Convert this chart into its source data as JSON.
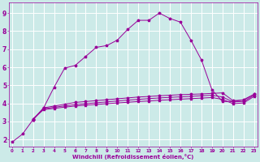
{
  "xlabel": "Windchill (Refroidissement éolien,°C)",
  "bg_color": "#cceae8",
  "grid_color": "#ffffff",
  "line_color": "#990099",
  "marker": "*",
  "x_ticks": [
    0,
    1,
    2,
    3,
    4,
    5,
    6,
    7,
    8,
    9,
    10,
    11,
    12,
    13,
    14,
    15,
    16,
    17,
    18,
    19,
    20,
    21,
    22,
    23
  ],
  "y_ticks": [
    2,
    3,
    4,
    5,
    6,
    7,
    8,
    9
  ],
  "xlim": [
    -0.3,
    23.3
  ],
  "ylim": [
    1.6,
    9.6
  ],
  "curve1_x": [
    0,
    1,
    2,
    3,
    4,
    5,
    6,
    7,
    8,
    9,
    10,
    11,
    12,
    13,
    14,
    15,
    16,
    17,
    18,
    19,
    20,
    21,
    22,
    23
  ],
  "curve1_y": [
    1.85,
    2.3,
    3.1,
    3.75,
    4.9,
    5.95,
    6.1,
    6.6,
    7.1,
    7.2,
    7.5,
    8.1,
    8.6,
    8.6,
    9.0,
    8.7,
    8.5,
    7.5,
    6.4,
    4.75,
    4.1,
    4.1,
    4.2,
    4.5
  ],
  "curve2_x": [
    2,
    3,
    4,
    5,
    6,
    7,
    8,
    9,
    10,
    11,
    12,
    13,
    14,
    15,
    16,
    17,
    18,
    19,
    20,
    21,
    22,
    23
  ],
  "curve2_y": [
    3.1,
    3.75,
    3.85,
    3.95,
    4.05,
    4.1,
    4.15,
    4.2,
    4.25,
    4.3,
    4.35,
    4.38,
    4.42,
    4.45,
    4.48,
    4.5,
    4.52,
    4.55,
    4.58,
    4.15,
    4.18,
    4.5
  ],
  "curve3_x": [
    2,
    3,
    4,
    5,
    6,
    7,
    8,
    9,
    10,
    11,
    12,
    13,
    14,
    15,
    16,
    17,
    18,
    19,
    20,
    21,
    22,
    23
  ],
  "curve3_y": [
    3.1,
    3.7,
    3.78,
    3.86,
    3.93,
    3.98,
    4.03,
    4.08,
    4.13,
    4.18,
    4.22,
    4.26,
    4.3,
    4.33,
    4.36,
    4.39,
    4.42,
    4.45,
    4.35,
    4.08,
    4.1,
    4.44
  ],
  "curve4_x": [
    2,
    3,
    4,
    5,
    6,
    7,
    8,
    9,
    10,
    11,
    12,
    13,
    14,
    15,
    16,
    17,
    18,
    19,
    20,
    21,
    22,
    23
  ],
  "curve4_y": [
    3.15,
    3.65,
    3.72,
    3.79,
    3.85,
    3.9,
    3.94,
    3.98,
    4.02,
    4.06,
    4.1,
    4.13,
    4.17,
    4.2,
    4.23,
    4.26,
    4.29,
    4.32,
    4.22,
    3.98,
    4.02,
    4.38
  ]
}
